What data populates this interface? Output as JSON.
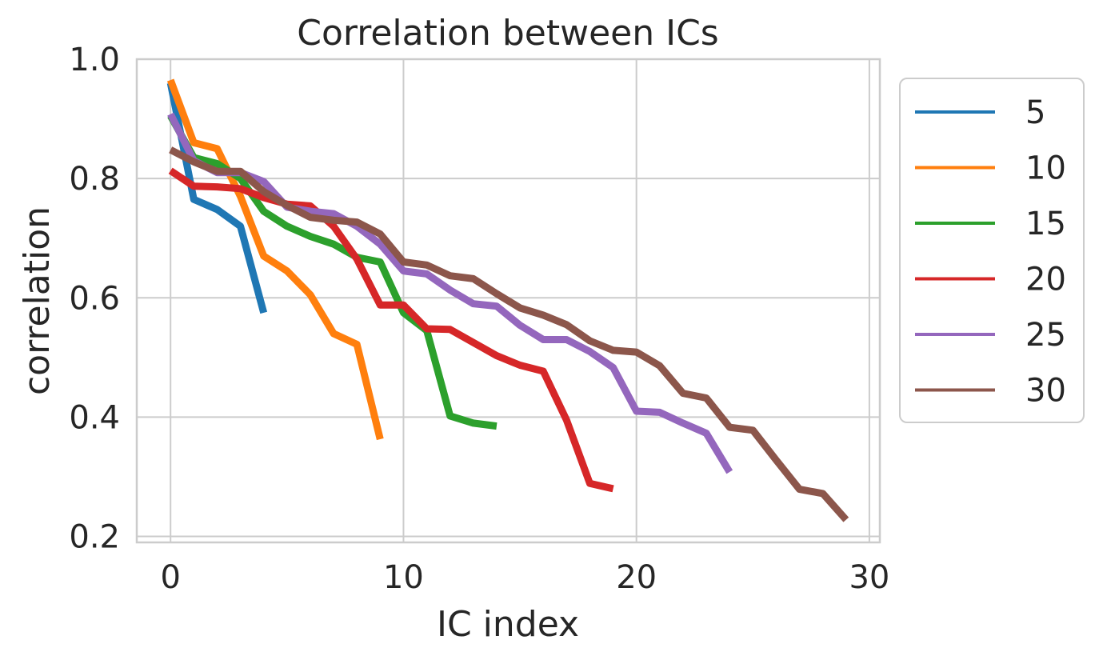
{
  "chart_data": {
    "type": "line",
    "title": "Correlation between ICs",
    "xlabel": "IC index",
    "ylabel": "correlation",
    "xlim": [
      -1.45,
      30.45
    ],
    "ylim": [
      0.19,
      1.0
    ],
    "xticks": [
      0,
      10,
      20,
      30
    ],
    "yticks": [
      0.2,
      0.4,
      0.6,
      0.8,
      1.0
    ],
    "xtick_labels": [
      "0",
      "10",
      "20",
      "30"
    ],
    "ytick_labels": [
      "0.2",
      "0.4",
      "0.6",
      "0.8",
      "1.0"
    ],
    "grid": true,
    "legend_position": "outside-right",
    "series": [
      {
        "name": "5",
        "color": "#1f77b4",
        "values": [
          0.96,
          0.765,
          0.748,
          0.72,
          0.575
        ]
      },
      {
        "name": "10",
        "color": "#ff7f0e",
        "values": [
          0.965,
          0.86,
          0.85,
          0.77,
          0.67,
          0.645,
          0.605,
          0.54,
          0.522,
          0.363
        ]
      },
      {
        "name": "15",
        "color": "#2ca02c",
        "values": [
          0.905,
          0.835,
          0.825,
          0.8,
          0.745,
          0.72,
          0.703,
          0.69,
          0.668,
          0.66,
          0.575,
          0.545,
          0.402,
          0.39,
          0.385
        ]
      },
      {
        "name": "20",
        "color": "#d62728",
        "values": [
          0.813,
          0.787,
          0.786,
          0.783,
          0.768,
          0.757,
          0.754,
          0.72,
          0.665,
          0.588,
          0.588,
          0.548,
          0.547,
          0.525,
          0.503,
          0.487,
          0.477,
          0.395,
          0.289,
          0.28
        ]
      },
      {
        "name": "25",
        "color": "#9467bd",
        "values": [
          0.908,
          0.83,
          0.81,
          0.81,
          0.795,
          0.752,
          0.745,
          0.741,
          0.72,
          0.69,
          0.645,
          0.64,
          0.613,
          0.59,
          0.586,
          0.554,
          0.53,
          0.53,
          0.51,
          0.483,
          0.41,
          0.408,
          0.39,
          0.373,
          0.308
        ]
      },
      {
        "name": "30",
        "color": "#8c564b",
        "values": [
          0.848,
          0.828,
          0.812,
          0.812,
          0.778,
          0.755,
          0.735,
          0.73,
          0.727,
          0.707,
          0.66,
          0.655,
          0.637,
          0.632,
          0.607,
          0.583,
          0.571,
          0.555,
          0.528,
          0.512,
          0.509,
          0.486,
          0.44,
          0.432,
          0.383,
          0.378,
          0.328,
          0.279,
          0.272,
          0.228
        ]
      }
    ]
  }
}
